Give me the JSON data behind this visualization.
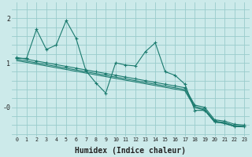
{
  "xlabel": "Humidex (Indice chaleur)",
  "bg_color": "#cceaea",
  "grid_color": "#99cccc",
  "line_color": "#1a7a6e",
  "xlim": [
    -0.5,
    23.5
  ],
  "ylim": [
    -0.65,
    2.35
  ],
  "series1_x": [
    0,
    1,
    2,
    3,
    4,
    5,
    6,
    7,
    8,
    9,
    10,
    11,
    12,
    13,
    14,
    15,
    16,
    17,
    18,
    19,
    20,
    21,
    22,
    23
  ],
  "series1_y": [
    1.1,
    1.1,
    1.75,
    1.3,
    1.4,
    1.95,
    1.55,
    0.82,
    0.55,
    0.32,
    1.0,
    0.95,
    0.93,
    1.25,
    1.45,
    0.8,
    0.72,
    0.52,
    -0.07,
    -0.07,
    -0.33,
    -0.36,
    -0.43,
    -0.43
  ],
  "series2_x": [
    0,
    1,
    2,
    3,
    4,
    5,
    6,
    7,
    8,
    9,
    10,
    11,
    12,
    13,
    14,
    15,
    16,
    17,
    18,
    19,
    20,
    21,
    22,
    23
  ],
  "series2_y": [
    1.12,
    1.08,
    1.04,
    1.0,
    0.96,
    0.92,
    0.88,
    0.84,
    0.8,
    0.76,
    0.72,
    0.68,
    0.64,
    0.6,
    0.56,
    0.52,
    0.48,
    0.44,
    0.05,
    0.0,
    -0.28,
    -0.31,
    -0.38,
    -0.4
  ],
  "series3_x": [
    0,
    1,
    2,
    3,
    4,
    5,
    6,
    7,
    8,
    9,
    10,
    11,
    12,
    13,
    14,
    15,
    16,
    17,
    18,
    19,
    20,
    21,
    22,
    23
  ],
  "series3_y": [
    1.08,
    1.04,
    1.0,
    0.96,
    0.92,
    0.88,
    0.84,
    0.8,
    0.76,
    0.72,
    0.68,
    0.64,
    0.6,
    0.56,
    0.52,
    0.48,
    0.44,
    0.4,
    0.02,
    -0.04,
    -0.31,
    -0.34,
    -0.41,
    -0.43
  ],
  "series4_x": [
    0,
    1,
    2,
    3,
    4,
    5,
    6,
    7,
    8,
    9,
    10,
    11,
    12,
    13,
    14,
    15,
    16,
    17,
    18,
    19,
    20,
    21,
    22,
    23
  ],
  "series4_y": [
    1.05,
    1.01,
    0.97,
    0.93,
    0.89,
    0.85,
    0.81,
    0.77,
    0.73,
    0.69,
    0.65,
    0.61,
    0.57,
    0.53,
    0.49,
    0.45,
    0.41,
    0.37,
    -0.01,
    -0.06,
    -0.33,
    -0.36,
    -0.43,
    -0.44
  ]
}
